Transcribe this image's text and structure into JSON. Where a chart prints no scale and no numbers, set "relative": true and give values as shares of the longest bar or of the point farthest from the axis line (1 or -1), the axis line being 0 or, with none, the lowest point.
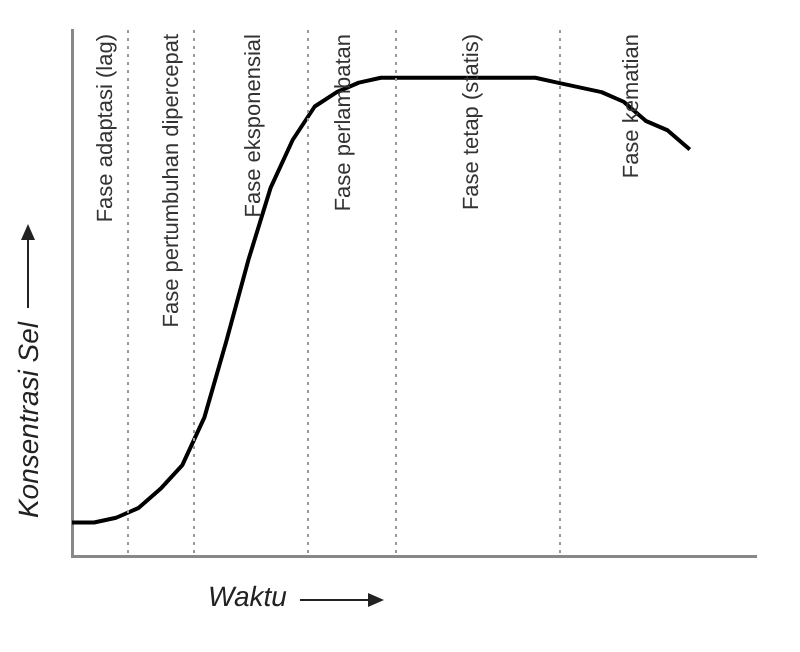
{
  "chart_data": {
    "type": "line",
    "relative": true,
    "xlabel": "Waktu",
    "ylabel": "Konsentrasi Sel",
    "tick_labels": false,
    "grid": false,
    "categories": [
      null,
      null,
      null,
      null,
      null,
      null,
      null,
      null,
      null,
      null,
      null,
      null,
      null,
      null,
      null,
      null,
      null,
      null,
      null,
      null,
      null,
      null,
      null,
      null,
      null,
      null,
      null,
      null,
      null,
      null,
      null,
      null
    ],
    "series": [
      {
        "color": "#000000",
        "values": [
          0.07,
          0.07,
          0.08,
          0.1,
          0.14,
          0.19,
          0.29,
          0.45,
          0.62,
          0.77,
          0.87,
          0.94,
          0.97,
          0.99,
          1,
          1,
          1,
          1,
          1,
          1,
          1,
          1,
          0.99,
          0.98,
          0.97,
          0.95,
          0.91,
          0.89,
          0.85,
          null,
          null,
          null
        ]
      }
    ],
    "annotations": [
      "Fase adaptasi (lag)",
      "Fase pertumbuhan dipercepat",
      "Fase eksponensial",
      "Fase perlambatan",
      "Fase tetap (statis)",
      "Fase kematian"
    ]
  }
}
